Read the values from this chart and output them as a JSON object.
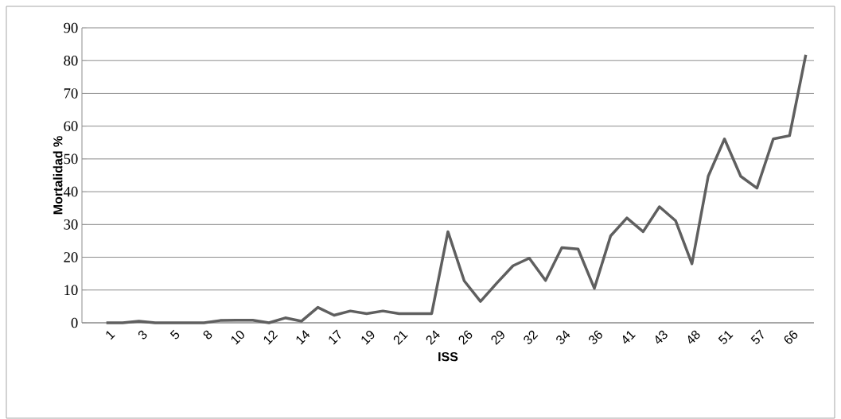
{
  "chart_data": {
    "type": "line",
    "xlabel": "ISS",
    "ylabel": "Mortalidad %",
    "categories": [
      "1",
      null,
      "3",
      null,
      "5",
      null,
      "8",
      null,
      "10",
      null,
      "12",
      null,
      "14",
      null,
      "17",
      null,
      "19",
      null,
      "21",
      null,
      "24",
      null,
      "26",
      null,
      "29",
      null,
      "32",
      null,
      "34",
      null,
      "36",
      null,
      "41",
      null,
      "43",
      null,
      "48",
      null,
      "51",
      null,
      "57",
      null,
      "66",
      null
    ],
    "values": [
      0,
      0,
      0.5,
      0,
      0,
      0,
      0,
      0.7,
      0.8,
      0.8,
      0,
      1.5,
      0.5,
      4.7,
      2.3,
      3.6,
      2.8,
      3.6,
      2.8,
      2.8,
      2.8,
      27.8,
      12.8,
      6.5,
      12.1,
      17.4,
      19.7,
      12.9,
      22.9,
      22.5,
      10.5,
      26.5,
      32.0,
      27.8,
      35.4,
      31.1,
      18.0,
      44.7,
      56.1,
      44.7,
      41.1,
      56.1,
      57.1,
      81.8
    ],
    "color": "#5f5f5f",
    "ylim": [
      0,
      90
    ],
    "yticks": [
      0,
      10,
      20,
      30,
      40,
      50,
      60,
      70,
      80,
      90
    ],
    "grid": "y"
  }
}
